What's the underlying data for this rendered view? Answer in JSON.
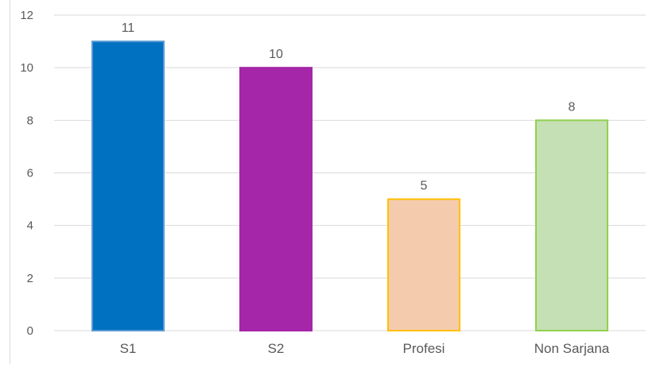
{
  "chart_data": {
    "type": "bar",
    "title": "",
    "xlabel": "",
    "ylabel": "",
    "categories": [
      "S1",
      "S2",
      "Profesi",
      "Non Sarjana"
    ],
    "values": [
      11,
      10,
      5,
      8
    ],
    "data_labels": [
      "11",
      "10",
      "5",
      "8"
    ],
    "ylim": [
      0,
      12
    ],
    "y_ticks": [
      0,
      2,
      4,
      6,
      8,
      10,
      12
    ],
    "y_tick_labels": [
      "0",
      "2",
      "4",
      "6",
      "8",
      "10",
      "12"
    ],
    "grid": true,
    "legend": "none",
    "bar_colors": [
      "#0070c0",
      "#a526a8",
      "#f5cbae",
      "#c5e0b4"
    ],
    "bar_border_colors": [
      "#5b9bd5",
      "#a526a8",
      "#ffc000",
      "#92d050"
    ]
  }
}
